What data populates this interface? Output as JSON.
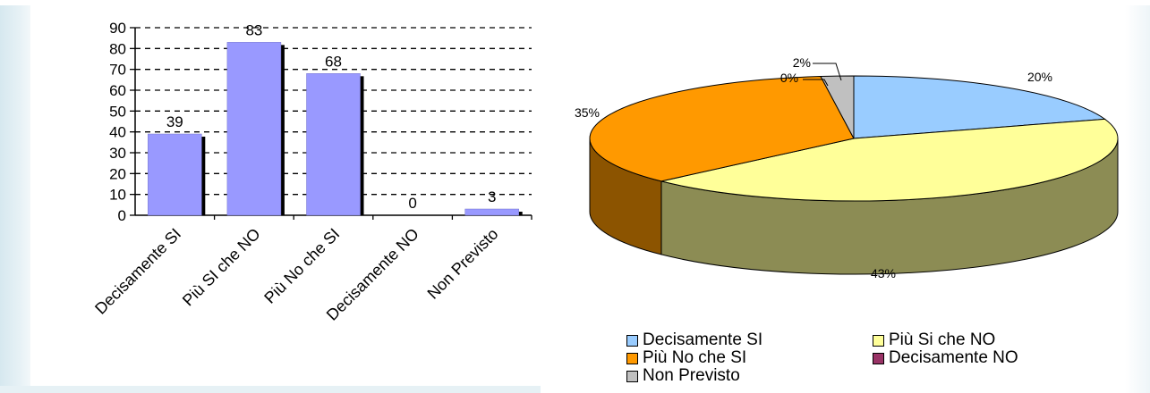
{
  "chart_data": [
    {
      "type": "bar",
      "categories": [
        "Decisamente SI",
        "Più SI che NO",
        "Più No che SI",
        "Decisamente NO",
        "Non Previsto"
      ],
      "values": [
        39,
        83,
        68,
        0,
        3
      ],
      "data_labels": [
        "39",
        "83",
        "68",
        "0",
        "3"
      ],
      "y_ticks": [
        "0",
        "10",
        "20",
        "30",
        "40",
        "50",
        "60",
        "70",
        "80",
        "90"
      ],
      "ylim": [
        0,
        90
      ],
      "grid": true,
      "colors": {
        "bar": "#9999ff",
        "bar_shadow": "#000000"
      }
    },
    {
      "type": "pie",
      "labels": [
        "Decisamente SI",
        "Più Si che NO",
        "Più No che SI",
        "Decisamente NO",
        "Non Previsto"
      ],
      "values": [
        20,
        43,
        35,
        0,
        2
      ],
      "data_labels": [
        "20%",
        "43%",
        "35%",
        "0%",
        "2%"
      ],
      "legend_position": "bottom",
      "colors": [
        "#99ccff",
        "#ffff99",
        "#ff9900",
        "#993366",
        "#c0c0c0"
      ]
    }
  ]
}
